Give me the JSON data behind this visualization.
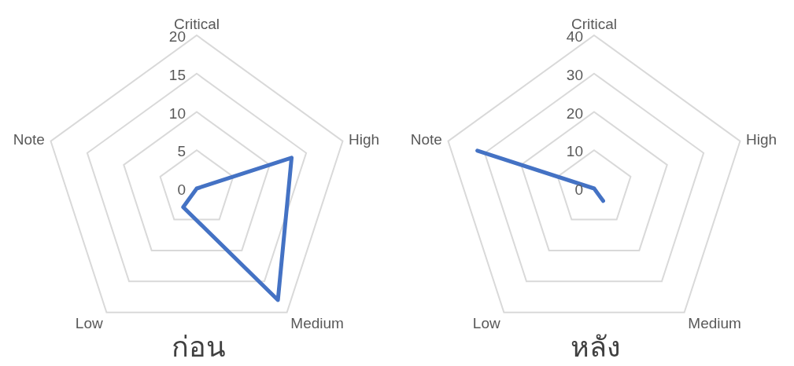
{
  "chart_data": [
    {
      "type": "radar",
      "title": "ก่อน",
      "categories": [
        "Critical",
        "High",
        "Medium",
        "Low",
        "Note"
      ],
      "ylim": [
        0,
        20
      ],
      "yticks": [
        0,
        5,
        10,
        15,
        20
      ],
      "grid": true,
      "series": [
        {
          "color": "#4472c4",
          "values": [
            0,
            13,
            18,
            3,
            0
          ]
        }
      ]
    },
    {
      "type": "radar",
      "title": "หลัง",
      "categories": [
        "Critical",
        "High",
        "Medium",
        "Low",
        "Note"
      ],
      "ylim": [
        0,
        40
      ],
      "yticks": [
        0,
        10,
        20,
        30,
        40
      ],
      "grid": true,
      "series": [
        {
          "color": "#4472c4",
          "values": [
            0,
            0,
            4,
            0,
            32
          ]
        }
      ]
    }
  ]
}
